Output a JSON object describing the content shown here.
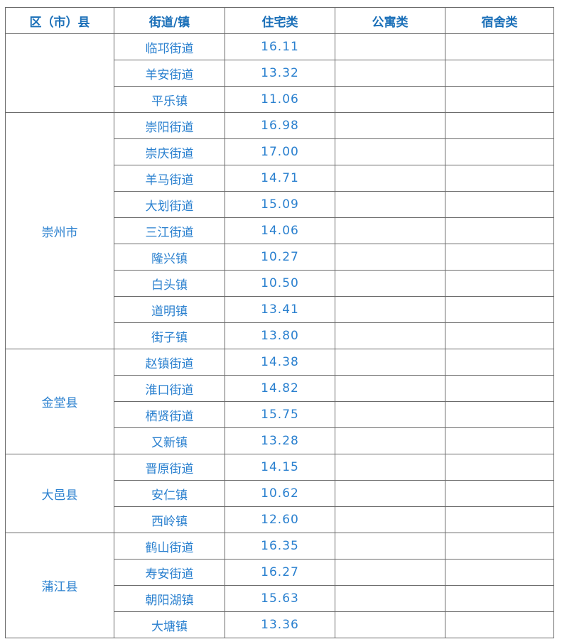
{
  "headers": [
    "区（市）县",
    "街道/镇",
    "住宅类",
    "公寓类",
    "宿舍类"
  ],
  "groups": [
    {
      "district": "",
      "rows": [
        {
          "street": "临邛街道",
          "residential": "16.11",
          "apartment": "",
          "dormitory": ""
        },
        {
          "street": "羊安街道",
          "residential": "13.32",
          "apartment": "",
          "dormitory": ""
        },
        {
          "street": "平乐镇",
          "residential": "11.06",
          "apartment": "",
          "dormitory": ""
        }
      ]
    },
    {
      "district": "崇州市",
      "rows": [
        {
          "street": "崇阳街道",
          "residential": "16.98",
          "apartment": "",
          "dormitory": ""
        },
        {
          "street": "崇庆街道",
          "residential": "17.00",
          "apartment": "",
          "dormitory": ""
        },
        {
          "street": "羊马街道",
          "residential": "14.71",
          "apartment": "",
          "dormitory": ""
        },
        {
          "street": "大划街道",
          "residential": "15.09",
          "apartment": "",
          "dormitory": ""
        },
        {
          "street": "三江街道",
          "residential": "14.06",
          "apartment": "",
          "dormitory": ""
        },
        {
          "street": "隆兴镇",
          "residential": "10.27",
          "apartment": "",
          "dormitory": ""
        },
        {
          "street": "白头镇",
          "residential": "10.50",
          "apartment": "",
          "dormitory": ""
        },
        {
          "street": "道明镇",
          "residential": "13.41",
          "apartment": "",
          "dormitory": ""
        },
        {
          "street": "街子镇",
          "residential": "13.80",
          "apartment": "",
          "dormitory": ""
        }
      ]
    },
    {
      "district": "金堂县",
      "rows": [
        {
          "street": "赵镇街道",
          "residential": "14.38",
          "apartment": "",
          "dormitory": ""
        },
        {
          "street": "淮口街道",
          "residential": "14.82",
          "apartment": "",
          "dormitory": ""
        },
        {
          "street": "栖贤街道",
          "residential": "15.75",
          "apartment": "",
          "dormitory": ""
        },
        {
          "street": "又新镇",
          "residential": "13.28",
          "apartment": "",
          "dormitory": ""
        }
      ]
    },
    {
      "district": "大邑县",
      "rows": [
        {
          "street": "晋原街道",
          "residential": "14.15",
          "apartment": "",
          "dormitory": ""
        },
        {
          "street": "安仁镇",
          "residential": "10.62",
          "apartment": "",
          "dormitory": ""
        },
        {
          "street": "西岭镇",
          "residential": "12.60",
          "apartment": "",
          "dormitory": ""
        }
      ]
    },
    {
      "district": "蒲江县",
      "rows": [
        {
          "street": "鹤山街道",
          "residential": "16.35",
          "apartment": "",
          "dormitory": ""
        },
        {
          "street": "寿安街道",
          "residential": "16.27",
          "apartment": "",
          "dormitory": ""
        },
        {
          "street": "朝阳湖镇",
          "residential": "15.63",
          "apartment": "",
          "dormitory": ""
        },
        {
          "street": "大塘镇",
          "residential": "13.36",
          "apartment": "",
          "dormitory": ""
        }
      ]
    }
  ]
}
